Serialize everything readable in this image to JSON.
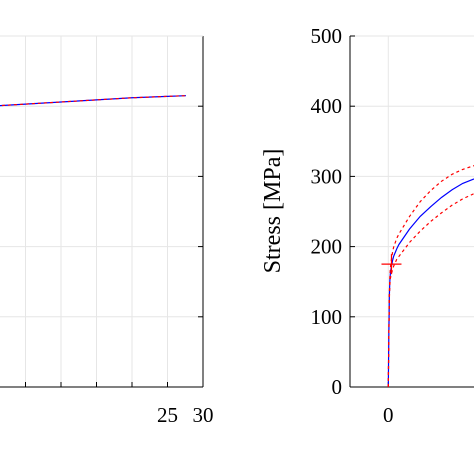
{
  "chart_data": [
    {
      "panel": "left",
      "type": "line",
      "title": "",
      "xlabel": "",
      "ylabel": "",
      "xlim": [
        0,
        30
      ],
      "ylim": [
        0,
        500
      ],
      "x_ticks": [
        "25",
        "30"
      ],
      "x_tick_values": [
        25,
        30
      ],
      "grid": true,
      "series": [
        {
          "color": "#0000ff",
          "style": "solid",
          "x": [
            0,
            5,
            10,
            15,
            20,
            25,
            27.6
          ],
          "y": [
            400,
            403,
            406,
            409,
            412,
            414,
            415
          ]
        },
        {
          "color": "#ff0000",
          "style": "dashed",
          "x": [
            0,
            5,
            10,
            15,
            20,
            25,
            27.6
          ],
          "y": [
            400,
            403,
            406,
            409,
            412,
            414,
            415
          ]
        }
      ]
    },
    {
      "panel": "right",
      "type": "line",
      "title": "",
      "xlabel": "",
      "ylabel": "Stress [MPa]",
      "xlim": [
        -3.6,
        9
      ],
      "ylim": [
        0,
        500
      ],
      "y_ticks": [
        "0",
        "100",
        "200",
        "300",
        "400",
        "500"
      ],
      "y_tick_values": [
        0,
        100,
        200,
        300,
        400,
        500
      ],
      "x_ticks": [
        "0"
      ],
      "x_tick_values": [
        0
      ],
      "grid": true,
      "marker": {
        "type": "cross",
        "color": "#ff0000",
        "x": 0.3,
        "y": 175
      },
      "series": [
        {
          "color": "#0000ff",
          "style": "solid",
          "x": [
            0,
            0.05,
            0.1,
            0.15,
            0.2,
            0.3,
            0.4,
            0.5,
            0.8,
            1,
            2,
            3,
            4,
            5,
            6,
            7,
            8,
            9
          ],
          "y": [
            0,
            70,
            130,
            152,
            163,
            172,
            180,
            186,
            197,
            203,
            225,
            243,
            257,
            270,
            281,
            290,
            296,
            300
          ]
        },
        {
          "color": "#ff0000",
          "style": "dashed",
          "x": [
            0,
            0.05,
            0.1,
            0.15,
            0.2,
            0.3,
            0.4,
            0.5,
            0.8,
            1,
            2,
            3,
            4,
            5,
            6,
            7,
            8,
            9
          ],
          "y": [
            0,
            72,
            134,
            158,
            170,
            182,
            192,
            199,
            212,
            218,
            243,
            264,
            280,
            293,
            303,
            310,
            315,
            318
          ]
        },
        {
          "color": "#ff0000",
          "style": "dashed",
          "x": [
            0,
            0.05,
            0.1,
            0.15,
            0.2,
            0.3,
            0.4,
            0.5,
            0.8,
            1,
            2,
            3,
            4,
            5,
            6,
            7,
            8,
            9
          ],
          "y": [
            0,
            68,
            126,
            146,
            155,
            162,
            167,
            172,
            182,
            186,
            206,
            222,
            236,
            248,
            259,
            268,
            275,
            280
          ]
        }
      ]
    }
  ]
}
